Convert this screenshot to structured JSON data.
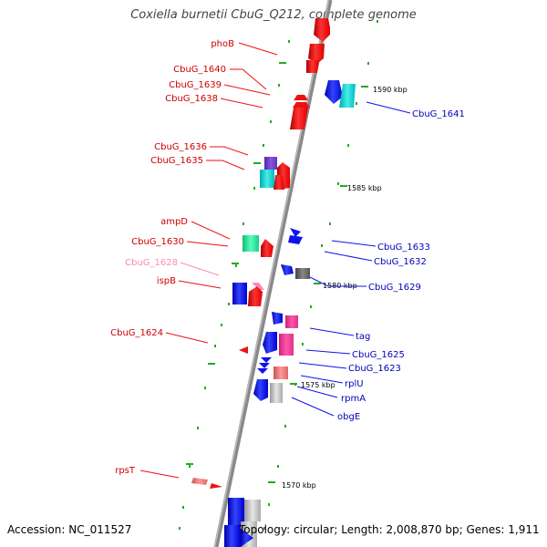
{
  "title": "Coxiella burnetii CbuG_Q212, complete genome",
  "footer": {
    "accession": "Accession: NC_011527",
    "summary": "Topology: circular; Length: 2,008,870 bp; Genes: 1,911"
  },
  "kbp_ticks": [
    "1590 kbp",
    "1585 kbp",
    "1580 kbp",
    "1575 kbp",
    "1570 kbp"
  ],
  "left_labels": [
    "phoB",
    "CbuG_1640",
    "CbuG_1639",
    "CbuG_1638",
    "CbuG_1636",
    "CbuG_1635",
    "ampD",
    "CbuG_1630",
    "CbuG_1628",
    "ispB",
    "CbuG_1624",
    "rpsT"
  ],
  "right_labels": [
    "CbuG_1641",
    "CbuG_1633",
    "CbuG_1632",
    "CbuG_1629",
    "tag",
    "CbuG_1625",
    "CbuG_1623",
    "rplU",
    "rpmA",
    "obgE"
  ],
  "colors": {
    "forward": "#ee1111",
    "reverse": "#1111ee",
    "label_forward": "#cc0000",
    "label_reverse": "#0000bb",
    "label_pseudo": "#ff88bb",
    "backbone": "#888888",
    "tick": "#22aa22"
  }
}
